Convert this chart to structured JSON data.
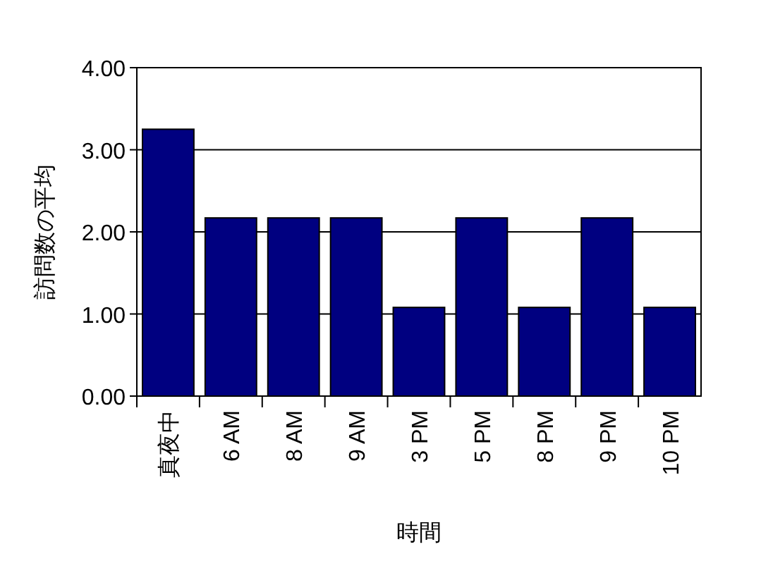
{
  "chart_data": {
    "type": "bar",
    "xlabel": "時間",
    "ylabel": "訪問数の平均",
    "categories": [
      "真夜中",
      "6 AM",
      "8 AM",
      "9 AM",
      "3 PM",
      "5 PM",
      "8 PM",
      "9 PM",
      "10 PM"
    ],
    "values": [
      3.25,
      2.17,
      2.17,
      2.17,
      1.08,
      2.17,
      1.08,
      2.17,
      1.08
    ],
    "color": "#000080",
    "ylim": [
      0,
      4
    ],
    "yticks": [
      {
        "value": 0,
        "label": "0.00"
      },
      {
        "value": 1,
        "label": "1.00"
      },
      {
        "value": 2,
        "label": "2.00"
      },
      {
        "value": 3,
        "label": "3.00"
      },
      {
        "value": 4,
        "label": "4.00"
      }
    ],
    "grid": "y"
  }
}
